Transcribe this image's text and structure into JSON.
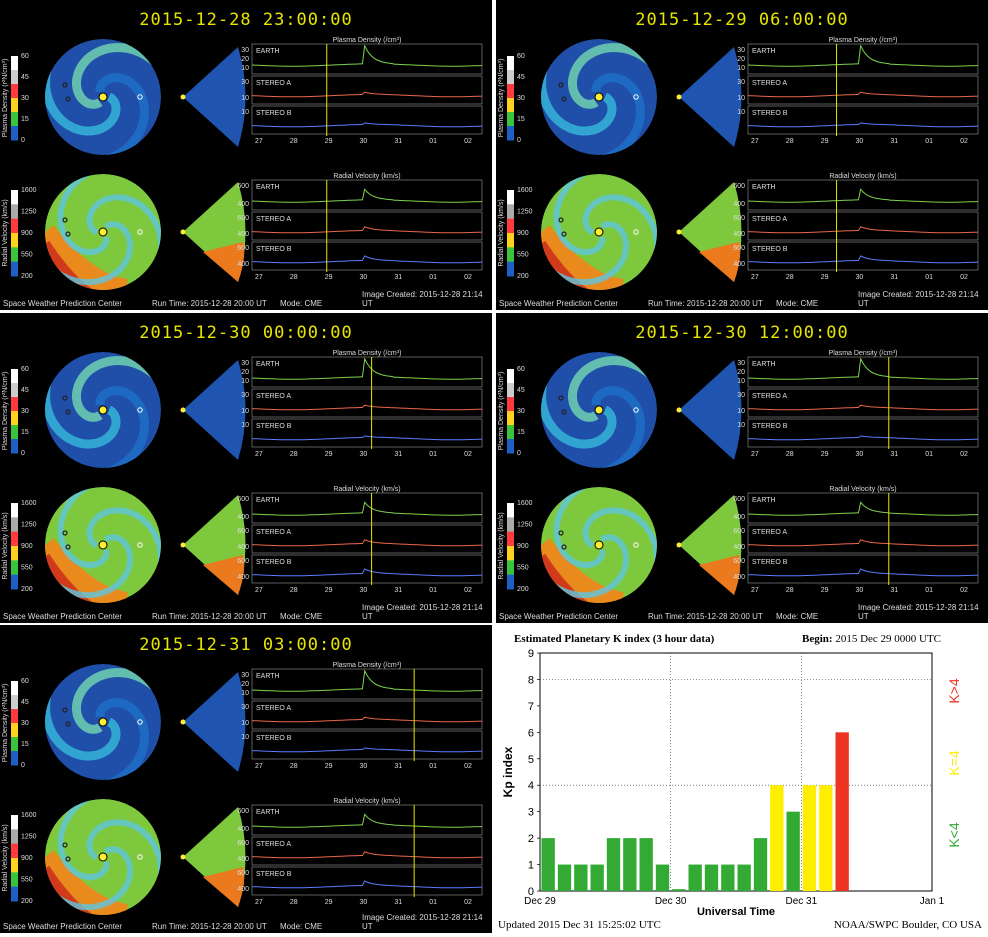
{
  "panels": [
    {
      "timestamp": "2015-12-28 23:00:00",
      "marker_frac": 0.325
    },
    {
      "timestamp": "2015-12-29 06:00:00",
      "marker_frac": 0.385
    },
    {
      "timestamp": "2015-12-30 00:00:00",
      "marker_frac": 0.52
    },
    {
      "timestamp": "2015-12-30 12:00:00",
      "marker_frac": 0.612
    },
    {
      "timestamp": "2015-12-31 03:00:00",
      "marker_frac": 0.705
    }
  ],
  "footer": {
    "org": "Space Weather Prediction Center",
    "run_time": "Run Time: 2015-12-28 20:00 UT",
    "mode": "Mode: CME",
    "created": "Image Created: 2015-12-28 21:14 UT"
  },
  "density": {
    "colorbar_label": "Plasma Density (r²N/cm³)",
    "colorbar_ticks": [
      "60",
      "45",
      "30",
      "15",
      "0"
    ],
    "plot_title": "Plasma Density (/cm³)",
    "earth": {
      "label": "EARTH",
      "ticks": [
        "30",
        "20",
        "10"
      ]
    },
    "stereo_a": {
      "label": "STEREO A",
      "ticks": [
        "30",
        "10"
      ]
    },
    "stereo_b": {
      "label": "STEREO B",
      "ticks": [
        "10"
      ]
    }
  },
  "velocity": {
    "colorbar_label": "Radial Velocity (km/s)",
    "colorbar_ticks": [
      "1600",
      "1250",
      "900",
      "550",
      "200"
    ],
    "plot_title": "Radial Velocity (km/s)",
    "earth": {
      "label": "EARTH",
      "ticks": [
        "600",
        "400"
      ]
    },
    "stereo_a": {
      "label": "STEREO A",
      "ticks": [
        "600",
        "400"
      ]
    },
    "stereo_b": {
      "label": "STEREO B",
      "ticks": [
        "600",
        "400"
      ]
    }
  },
  "date_ticks": [
    "27",
    "28",
    "29",
    "30",
    "31",
    "01",
    "02"
  ],
  "colors": {
    "earth": "#7fd34e",
    "stereo_a": "#e8694a",
    "stereo_b": "#5a7cff",
    "marker": "#e6e600"
  },
  "chart_data": {
    "type": "bar",
    "title": "Estimated Planetary K index (3 hour data)",
    "begin_label": "Begin:",
    "begin_value": "2015 Dec 29 0000 UTC",
    "ylabel": "Kp index",
    "xlabel": "Universal Time",
    "ylim": [
      0,
      9
    ],
    "yticks": [
      "0",
      "1",
      "2",
      "3",
      "4",
      "5",
      "6",
      "7",
      "8",
      "9"
    ],
    "day_labels": [
      "Dec 29",
      "Dec 30",
      "Dec 31",
      "Jan 1"
    ],
    "values": [
      2,
      1,
      1,
      1,
      2,
      2,
      2,
      1,
      0.07,
      1,
      1,
      1,
      1,
      2,
      4,
      3,
      4,
      4,
      6
    ],
    "colors": [
      "g",
      "g",
      "g",
      "g",
      "g",
      "g",
      "g",
      "g",
      "g",
      "g",
      "g",
      "g",
      "g",
      "g",
      "y",
      "g",
      "y",
      "y",
      "r"
    ],
    "color_key": {
      "g": "#33aa33",
      "y": "#ffee00",
      "r": "#ee3322"
    },
    "legend": [
      {
        "text": "K<4",
        "color": "#33aa33"
      },
      {
        "text": "K=4",
        "color": "#ffee00"
      },
      {
        "text": "K>4",
        "color": "#ee3322"
      }
    ],
    "updated": "Updated 2015 Dec 31 15:25:02 UTC",
    "source": "NOAA/SWPC Boulder, CO USA"
  }
}
